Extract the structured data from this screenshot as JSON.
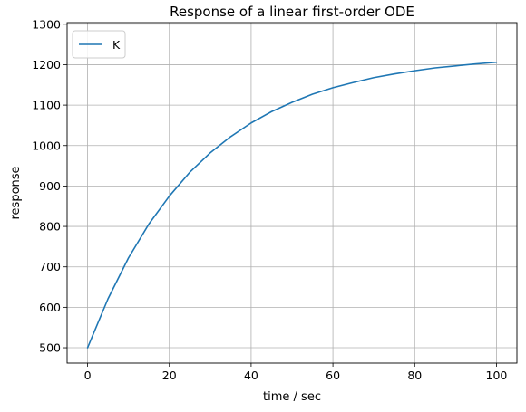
{
  "chart_data": {
    "type": "line",
    "title": "Response of a linear first-order ODE",
    "xlabel": "time / sec",
    "ylabel": "response",
    "xlim": [
      -5,
      105
    ],
    "ylim": [
      462,
      1304
    ],
    "xticks": [
      0,
      20,
      40,
      60,
      80,
      100
    ],
    "yticks": [
      500,
      600,
      700,
      800,
      900,
      1000,
      1100,
      1200,
      1300
    ],
    "grid": true,
    "legend_position": "upper-left",
    "series": [
      {
        "name": "K",
        "color": "#1f77b4",
        "x": [
          0,
          5,
          10,
          15,
          20,
          25,
          30,
          35,
          40,
          45,
          50,
          55,
          60,
          65,
          70,
          75,
          80,
          85,
          90,
          95,
          100
        ],
        "y": [
          500,
          621,
          722,
          806,
          875,
          934,
          982,
          1022,
          1056,
          1084,
          1107,
          1127,
          1143,
          1156,
          1168,
          1177,
          1185,
          1192,
          1197,
          1202,
          1206
        ]
      }
    ]
  }
}
